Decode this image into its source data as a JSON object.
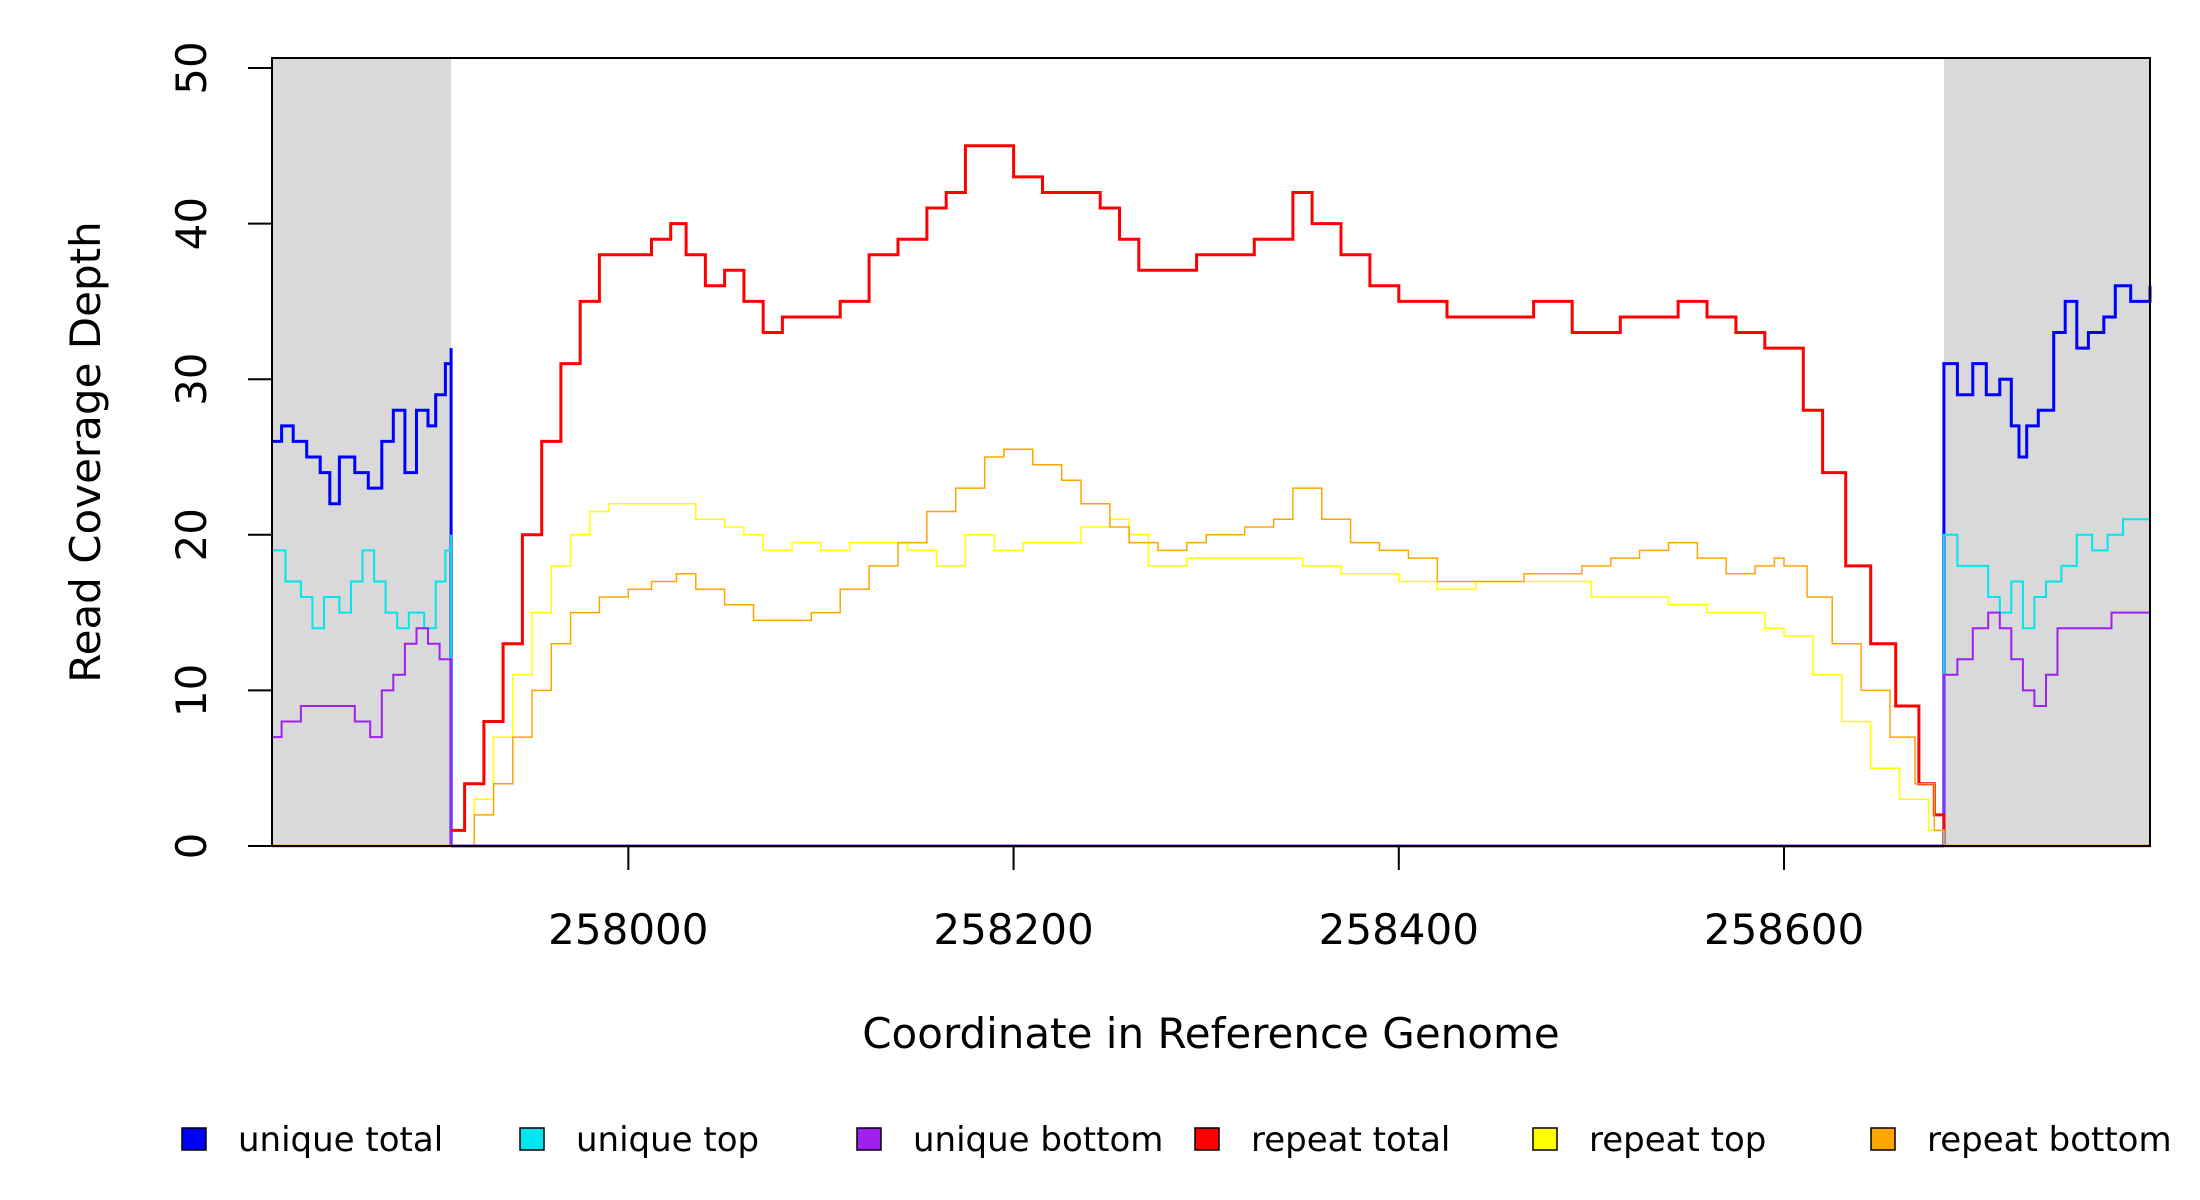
{
  "chart_data": {
    "type": "line",
    "title": "",
    "xlabel": "Coordinate in Reference Genome",
    "ylabel": "Read Coverage Depth",
    "xlim": [
      257815,
      258790
    ],
    "ylim": [
      0,
      50
    ],
    "x_ticks": [
      258000,
      258200,
      258400,
      258600
    ],
    "x_tick_labels": [
      "258000",
      "258200",
      "258400",
      "258600"
    ],
    "y_ticks": [
      0,
      10,
      20,
      30,
      40,
      50
    ],
    "y_tick_labels": [
      "0",
      "10",
      "20",
      "30",
      "40",
      "50"
    ],
    "repeat_region": [
      257908,
      258683
    ],
    "shaded_regions": [
      [
        257815,
        257908
      ],
      [
        258683,
        258790
      ]
    ],
    "shade_color": "#d9d9d9",
    "legend_position": "bottom",
    "series": [
      {
        "name": "unique total",
        "color": "#0000ff",
        "width": 3,
        "points": [
          [
            257815,
            26
          ],
          [
            257820,
            27
          ],
          [
            257826,
            26
          ],
          [
            257833,
            25
          ],
          [
            257840,
            24
          ],
          [
            257845,
            22
          ],
          [
            257850,
            25
          ],
          [
            257858,
            24
          ],
          [
            257865,
            23
          ],
          [
            257872,
            26
          ],
          [
            257878,
            28
          ],
          [
            257884,
            24
          ],
          [
            257890,
            28
          ],
          [
            257896,
            27
          ],
          [
            257900,
            29
          ],
          [
            257905,
            31
          ],
          [
            257908,
            32
          ],
          [
            257908,
            0
          ],
          [
            258683,
            0
          ],
          [
            258683,
            31
          ],
          [
            258690,
            29
          ],
          [
            258698,
            31
          ],
          [
            258705,
            29
          ],
          [
            258712,
            30
          ],
          [
            258718,
            27
          ],
          [
            258722,
            25
          ],
          [
            258726,
            27
          ],
          [
            258732,
            28
          ],
          [
            258740,
            33
          ],
          [
            258746,
            35
          ],
          [
            258752,
            32
          ],
          [
            258758,
            33
          ],
          [
            258766,
            34
          ],
          [
            258772,
            36
          ],
          [
            258780,
            35
          ],
          [
            258790,
            36
          ]
        ]
      },
      {
        "name": "unique top",
        "color": "#00e5ee",
        "width": 2,
        "points": [
          [
            257815,
            19
          ],
          [
            257822,
            17
          ],
          [
            257830,
            16
          ],
          [
            257836,
            14
          ],
          [
            257842,
            16
          ],
          [
            257850,
            15
          ],
          [
            257856,
            17
          ],
          [
            257862,
            19
          ],
          [
            257868,
            17
          ],
          [
            257874,
            15
          ],
          [
            257880,
            14
          ],
          [
            257886,
            15
          ],
          [
            257894,
            14
          ],
          [
            257900,
            17
          ],
          [
            257905,
            19
          ],
          [
            257908,
            20
          ],
          [
            257908,
            0
          ],
          [
            258683,
            0
          ],
          [
            258683,
            20
          ],
          [
            258690,
            18
          ],
          [
            258700,
            18
          ],
          [
            258706,
            16
          ],
          [
            258712,
            15
          ],
          [
            258718,
            17
          ],
          [
            258724,
            14
          ],
          [
            258730,
            16
          ],
          [
            258736,
            17
          ],
          [
            258744,
            18
          ],
          [
            258752,
            20
          ],
          [
            258760,
            19
          ],
          [
            258768,
            20
          ],
          [
            258776,
            21
          ],
          [
            258782,
            21
          ],
          [
            258790,
            22
          ]
        ]
      },
      {
        "name": "unique bottom",
        "color": "#a020f0",
        "width": 2,
        "points": [
          [
            257815,
            7
          ],
          [
            257820,
            8
          ],
          [
            257830,
            9
          ],
          [
            257840,
            9
          ],
          [
            257850,
            9
          ],
          [
            257858,
            8
          ],
          [
            257866,
            7
          ],
          [
            257872,
            10
          ],
          [
            257878,
            11
          ],
          [
            257884,
            13
          ],
          [
            257890,
            14
          ],
          [
            257896,
            13
          ],
          [
            257902,
            12
          ],
          [
            257908,
            12
          ],
          [
            257908,
            0
          ],
          [
            258683,
            0
          ],
          [
            258683,
            11
          ],
          [
            258690,
            12
          ],
          [
            258698,
            14
          ],
          [
            258706,
            15
          ],
          [
            258712,
            14
          ],
          [
            258718,
            12
          ],
          [
            258724,
            10
          ],
          [
            258730,
            9
          ],
          [
            258736,
            11
          ],
          [
            258742,
            14
          ],
          [
            258750,
            14
          ],
          [
            258760,
            14
          ],
          [
            258770,
            15
          ],
          [
            258780,
            15
          ],
          [
            258790,
            14
          ]
        ]
      },
      {
        "name": "repeat total",
        "color": "#ff0000",
        "width": 3,
        "points": [
          [
            257908,
            1
          ],
          [
            257915,
            4
          ],
          [
            257925,
            8
          ],
          [
            257935,
            13
          ],
          [
            257945,
            20
          ],
          [
            257955,
            26
          ],
          [
            257965,
            31
          ],
          [
            257975,
            35
          ],
          [
            257985,
            38
          ],
          [
            258000,
            38
          ],
          [
            258012,
            39
          ],
          [
            258022,
            40
          ],
          [
            258030,
            38
          ],
          [
            258040,
            36
          ],
          [
            258050,
            37
          ],
          [
            258060,
            35
          ],
          [
            258070,
            33
          ],
          [
            258080,
            34
          ],
          [
            258095,
            34
          ],
          [
            258110,
            35
          ],
          [
            258125,
            38
          ],
          [
            258140,
            39
          ],
          [
            258155,
            41
          ],
          [
            258165,
            42
          ],
          [
            258175,
            45
          ],
          [
            258190,
            45
          ],
          [
            258200,
            43
          ],
          [
            258215,
            42
          ],
          [
            258230,
            42
          ],
          [
            258245,
            41
          ],
          [
            258255,
            39
          ],
          [
            258265,
            37
          ],
          [
            258280,
            37
          ],
          [
            258295,
            38
          ],
          [
            258310,
            38
          ],
          [
            258325,
            39
          ],
          [
            258340,
            39
          ],
          [
            258345,
            42
          ],
          [
            258355,
            40
          ],
          [
            258370,
            38
          ],
          [
            258385,
            36
          ],
          [
            258400,
            35
          ],
          [
            258415,
            35
          ],
          [
            258425,
            34
          ],
          [
            258440,
            34
          ],
          [
            258455,
            34
          ],
          [
            258470,
            35
          ],
          [
            258480,
            35
          ],
          [
            258490,
            33
          ],
          [
            258500,
            33
          ],
          [
            258515,
            34
          ],
          [
            258530,
            34
          ],
          [
            258545,
            35
          ],
          [
            258560,
            34
          ],
          [
            258575,
            33
          ],
          [
            258590,
            32
          ],
          [
            258600,
            32
          ],
          [
            258610,
            28
          ],
          [
            258620,
            24
          ],
          [
            258632,
            18
          ],
          [
            258645,
            13
          ],
          [
            258658,
            9
          ],
          [
            258670,
            4
          ],
          [
            258678,
            2
          ],
          [
            258683,
            1
          ]
        ]
      },
      {
        "name": "repeat top",
        "color": "#ffff00",
        "width": 1.5,
        "points": [
          [
            257908,
            0
          ],
          [
            257920,
            3
          ],
          [
            257930,
            7
          ],
          [
            257940,
            11
          ],
          [
            257950,
            15
          ],
          [
            257960,
            18
          ],
          [
            257970,
            20
          ],
          [
            257980,
            21.5
          ],
          [
            257990,
            22
          ],
          [
            258005,
            22
          ],
          [
            258020,
            22
          ],
          [
            258035,
            21
          ],
          [
            258050,
            20.5
          ],
          [
            258060,
            20
          ],
          [
            258070,
            19
          ],
          [
            258085,
            19.5
          ],
          [
            258100,
            19
          ],
          [
            258115,
            19.5
          ],
          [
            258130,
            19.5
          ],
          [
            258145,
            19
          ],
          [
            258160,
            18
          ],
          [
            258175,
            20
          ],
          [
            258190,
            19
          ],
          [
            258205,
            19.5
          ],
          [
            258220,
            19.5
          ],
          [
            258235,
            20.5
          ],
          [
            258250,
            21
          ],
          [
            258260,
            20
          ],
          [
            258270,
            18
          ],
          [
            258290,
            18.5
          ],
          [
            258310,
            18.5
          ],
          [
            258330,
            18.5
          ],
          [
            258350,
            18
          ],
          [
            258370,
            17.5
          ],
          [
            258390,
            17.5
          ],
          [
            258400,
            17
          ],
          [
            258420,
            16.5
          ],
          [
            258440,
            17
          ],
          [
            258460,
            17
          ],
          [
            258480,
            17
          ],
          [
            258500,
            16
          ],
          [
            258520,
            16
          ],
          [
            258540,
            15.5
          ],
          [
            258560,
            15
          ],
          [
            258575,
            15
          ],
          [
            258590,
            14
          ],
          [
            258600,
            13.5
          ],
          [
            258615,
            11
          ],
          [
            258630,
            8
          ],
          [
            258645,
            5
          ],
          [
            258660,
            3
          ],
          [
            258675,
            1
          ],
          [
            258683,
            0
          ]
        ]
      },
      {
        "name": "repeat bottom",
        "color": "#ffa500",
        "width": 1.5,
        "points": [
          [
            257908,
            0
          ],
          [
            257920,
            2
          ],
          [
            257930,
            4
          ],
          [
            257940,
            7
          ],
          [
            257950,
            10
          ],
          [
            257960,
            13
          ],
          [
            257970,
            15
          ],
          [
            257985,
            16
          ],
          [
            258000,
            16.5
          ],
          [
            258012,
            17
          ],
          [
            258025,
            17.5
          ],
          [
            258035,
            16.5
          ],
          [
            258050,
            15.5
          ],
          [
            258065,
            14.5
          ],
          [
            258080,
            14.5
          ],
          [
            258095,
            15
          ],
          [
            258110,
            16.5
          ],
          [
            258125,
            18
          ],
          [
            258140,
            19.5
          ],
          [
            258155,
            21.5
          ],
          [
            258170,
            23
          ],
          [
            258185,
            25
          ],
          [
            258195,
            25.5
          ],
          [
            258210,
            24.5
          ],
          [
            258225,
            23.5
          ],
          [
            258235,
            22
          ],
          [
            258250,
            20.5
          ],
          [
            258260,
            19.5
          ],
          [
            258275,
            19
          ],
          [
            258290,
            19.5
          ],
          [
            258300,
            20
          ],
          [
            258320,
            20.5
          ],
          [
            258335,
            21
          ],
          [
            258345,
            23
          ],
          [
            258360,
            21
          ],
          [
            258375,
            19.5
          ],
          [
            258390,
            19
          ],
          [
            258405,
            18.5
          ],
          [
            258420,
            17
          ],
          [
            258435,
            17
          ],
          [
            258450,
            17
          ],
          [
            258465,
            17.5
          ],
          [
            258480,
            17.5
          ],
          [
            258495,
            18
          ],
          [
            258510,
            18.5
          ],
          [
            258525,
            19
          ],
          [
            258540,
            19.5
          ],
          [
            258555,
            18.5
          ],
          [
            258570,
            17.5
          ],
          [
            258585,
            18
          ],
          [
            258595,
            18.5
          ],
          [
            258600,
            18
          ],
          [
            258612,
            16
          ],
          [
            258625,
            13
          ],
          [
            258640,
            10
          ],
          [
            258655,
            7
          ],
          [
            258668,
            4
          ],
          [
            258678,
            1
          ],
          [
            258683,
            0
          ]
        ]
      }
    ]
  }
}
